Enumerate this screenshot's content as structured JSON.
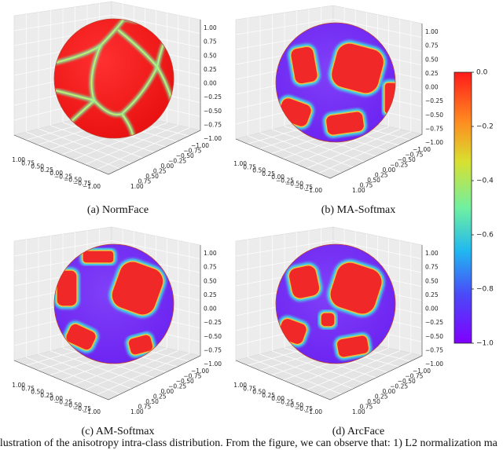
{
  "figure": {
    "panels": [
      {
        "caption": "(a) NormFace"
      },
      {
        "caption": "(b) MA-Softmax"
      },
      {
        "caption": "(c) AM-Softmax"
      },
      {
        "caption": "(d) ArcFace"
      }
    ],
    "axis_ticks": [
      "1.00",
      "0.75",
      "0.50",
      "0.25",
      "0.00",
      "−0.25",
      "−0.50",
      "−0.75",
      "−1.00"
    ],
    "colorbar_ticks": [
      "0.0",
      "−0.2",
      "−0.4",
      "−0.6",
      "−0.8",
      "−1.0"
    ],
    "caption": "llustration of the anisotropy intra-class distribution.  From the figure, we can observe that:  1) L2 normalization ma"
  }
}
